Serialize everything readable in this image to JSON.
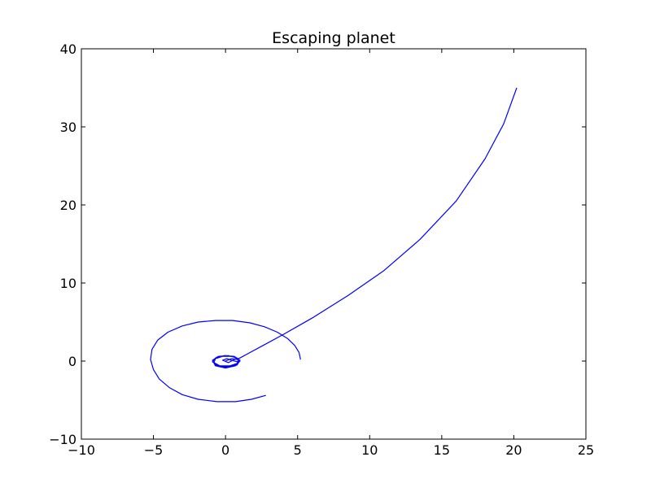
{
  "chart_data": {
    "type": "line",
    "title": "Escaping planet",
    "xlabel": "",
    "ylabel": "",
    "xlim": [
      -10,
      25
    ],
    "ylim": [
      -10,
      40
    ],
    "xticks": [
      -10,
      -5,
      0,
      5,
      10,
      15,
      20,
      25
    ],
    "yticks": [
      -10,
      0,
      10,
      20,
      30,
      40
    ],
    "xtick_labels": [
      "−10",
      "−5",
      "0",
      "5",
      "10",
      "15",
      "20",
      "25"
    ],
    "ytick_labels": [
      "−10",
      "0",
      "10",
      "20",
      "30",
      "40"
    ],
    "grid": false,
    "legend": "none",
    "line_color": "#0000ff",
    "series": [
      {
        "points": [
          [
            0.0,
            0.0
          ],
          [
            0.4,
            0.3
          ],
          [
            0.9,
            0.2
          ],
          [
            0.8,
            -0.3
          ],
          [
            0.3,
            -0.6
          ],
          [
            -0.4,
            -0.6
          ],
          [
            -0.8,
            -0.2
          ],
          [
            -0.7,
            0.3
          ],
          [
            -0.2,
            0.6
          ],
          [
            0.5,
            0.6
          ],
          [
            0.9,
            0.2
          ],
          [
            0.8,
            -0.4
          ],
          [
            0.2,
            -0.7
          ],
          [
            -0.5,
            -0.6
          ],
          [
            -0.9,
            -0.1
          ],
          [
            -0.7,
            0.4
          ],
          [
            -0.1,
            0.7
          ],
          [
            0.6,
            0.6
          ],
          [
            1.0,
            0.1
          ],
          [
            0.8,
            -0.5
          ],
          [
            0.1,
            -0.8
          ],
          [
            -0.6,
            -0.6
          ],
          [
            -0.9,
            0.0
          ],
          [
            -0.6,
            0.5
          ],
          [
            0.0,
            0.7
          ],
          [
            0.7,
            0.5
          ],
          [
            1.0,
            0.0
          ],
          [
            0.7,
            -0.6
          ],
          [
            0.0,
            -0.9
          ],
          [
            -0.7,
            -0.6
          ],
          [
            -0.9,
            0.1
          ],
          [
            -0.5,
            0.6
          ],
          [
            0.2,
            0.7
          ],
          [
            0.8,
            0.4
          ],
          [
            0.9,
            -0.1
          ],
          [
            0.4,
            0.1
          ],
          [
            0.1,
            0.3
          ],
          [
            -0.2,
            0.1
          ],
          [
            0.2,
            -0.2
          ],
          [
            0.6,
            0.2
          ],
          [
            1.0,
            0.4
          ],
          [
            1.5,
            0.9
          ],
          [
            2.5,
            1.9
          ],
          [
            4.0,
            3.4
          ],
          [
            6.0,
            5.5
          ],
          [
            8.5,
            8.4
          ],
          [
            11.0,
            11.6
          ],
          [
            13.5,
            15.6
          ],
          [
            16.0,
            20.5
          ],
          [
            18.0,
            25.9
          ],
          [
            19.3,
            30.4
          ],
          [
            20.2,
            35.0
          ]
        ]
      },
      {
        "points": [
          [
            5.2,
            0.2
          ],
          [
            5.1,
            1.1
          ],
          [
            4.8,
            2.0
          ],
          [
            4.3,
            2.9
          ],
          [
            3.6,
            3.7
          ],
          [
            2.7,
            4.4
          ],
          [
            1.7,
            4.9
          ],
          [
            0.5,
            5.2
          ],
          [
            -0.7,
            5.2
          ],
          [
            -1.9,
            5.0
          ],
          [
            -3.0,
            4.5
          ],
          [
            -4.0,
            3.7
          ],
          [
            -4.7,
            2.7
          ],
          [
            -5.1,
            1.5
          ],
          [
            -5.2,
            0.2
          ],
          [
            -5.0,
            -1.1
          ],
          [
            -4.6,
            -2.3
          ],
          [
            -3.9,
            -3.4
          ],
          [
            -3.0,
            -4.3
          ],
          [
            -1.9,
            -4.9
          ],
          [
            -0.6,
            -5.2
          ],
          [
            0.7,
            -5.2
          ],
          [
            1.8,
            -4.9
          ],
          [
            2.8,
            -4.4
          ]
        ]
      }
    ]
  }
}
